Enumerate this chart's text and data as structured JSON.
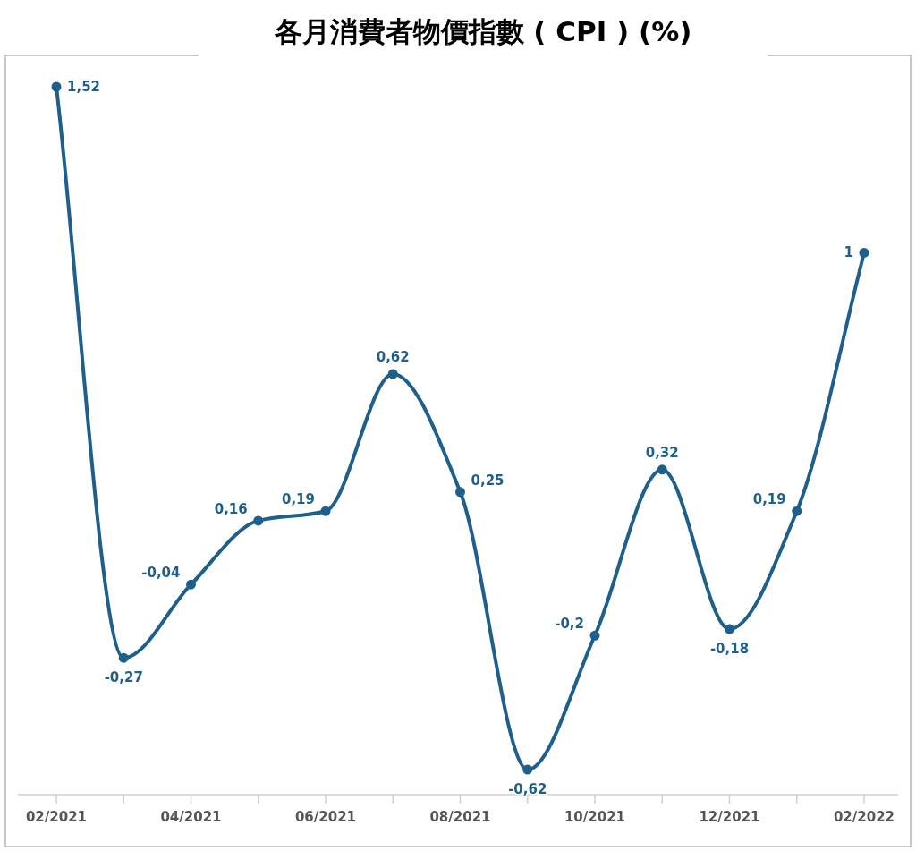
{
  "chart_data": {
    "type": "line",
    "title": "各月消費者物價指數 ( CPI ) (%)",
    "categories": [
      "02/2021",
      null,
      "04/2021",
      null,
      "06/2021",
      null,
      "08/2021",
      null,
      "10/2021",
      null,
      "12/2021",
      null,
      "02/2022"
    ],
    "values": [
      1.52,
      -0.27,
      -0.04,
      0.16,
      0.19,
      0.62,
      0.25,
      -0.62,
      -0.2,
      0.32,
      -0.18,
      0.19,
      1
    ],
    "value_labels": [
      "1,52",
      "-0,27",
      "-0,04",
      "0,16",
      "0,19",
      "0,62",
      "0,25",
      "-0,62",
      "-0,2",
      "0,32",
      "-0,18",
      "0,19",
      "1"
    ],
    "color": "#1f5f8b",
    "marker": "circle"
  }
}
